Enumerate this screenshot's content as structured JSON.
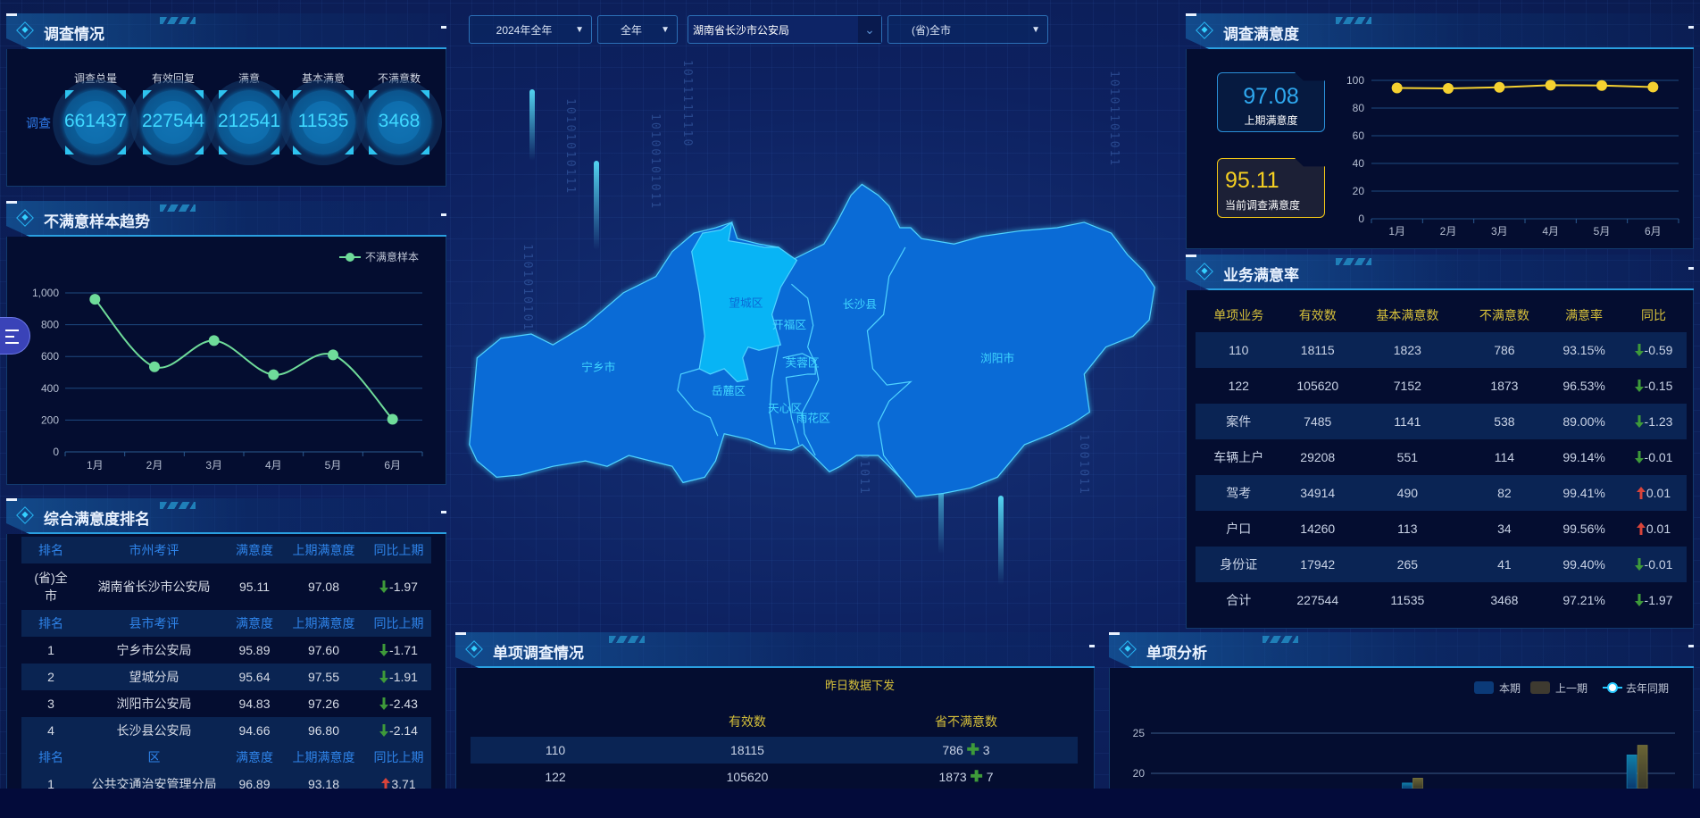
{
  "filters": {
    "year": "2024年全年",
    "period": "全年",
    "org": "湖南省长沙市公安局",
    "area": "(省)全市"
  },
  "survey": {
    "title": "调查情况",
    "row_label": "调查",
    "items": [
      {
        "label": "调查总量",
        "value": "661437"
      },
      {
        "label": "有效回复",
        "value": "227544"
      },
      {
        "label": "满意",
        "value": "212541"
      },
      {
        "label": "基本满意",
        "value": "11535"
      },
      {
        "label": "不满意数",
        "value": "3468"
      }
    ]
  },
  "trend": {
    "title": "不满意样本趋势"
  },
  "ranking": {
    "title": "综合满意度排名",
    "sections": [
      {
        "headers": [
          "排名",
          "市州考评",
          "满意度",
          "上期满意度",
          "同比上期"
        ],
        "rows": [
          {
            "rank": "(省)全市",
            "name": "湖南省长沙市公安局",
            "score": "95.11",
            "prev": "97.08",
            "dir": "down",
            "change": "-1.97"
          }
        ]
      },
      {
        "headers": [
          "排名",
          "县市考评",
          "满意度",
          "上期满意度",
          "同比上期"
        ],
        "rows": [
          {
            "rank": "1",
            "name": "宁乡市公安局",
            "score": "95.89",
            "prev": "97.60",
            "dir": "down",
            "change": "-1.71"
          },
          {
            "rank": "2",
            "name": "望城分局",
            "score": "95.64",
            "prev": "97.55",
            "dir": "down",
            "change": "-1.91"
          },
          {
            "rank": "3",
            "name": "浏阳市公安局",
            "score": "94.83",
            "prev": "97.26",
            "dir": "down",
            "change": "-2.43"
          },
          {
            "rank": "4",
            "name": "长沙县公安局",
            "score": "94.66",
            "prev": "96.80",
            "dir": "down",
            "change": "-2.14"
          }
        ]
      },
      {
        "headers": [
          "排名",
          "区",
          "满意度",
          "上期满意度",
          "同比上期"
        ],
        "rows": [
          {
            "rank": "1",
            "name": "公共交通治安管理分局",
            "score": "96.89",
            "prev": "93.18",
            "dir": "up",
            "change": "3.71"
          }
        ]
      }
    ]
  },
  "satisfaction": {
    "title": "调查满意度",
    "prev": {
      "value": "97.08",
      "label": "上期满意度"
    },
    "current": {
      "value": "95.11",
      "label": "当前调查满意度"
    }
  },
  "business": {
    "title": "业务满意率",
    "headers": [
      "单项业务",
      "有效数",
      "基本满意数",
      "不满意数",
      "满意率",
      "同比"
    ],
    "rows": [
      {
        "item": "110",
        "valid": "18115",
        "basic": "1823",
        "unsat": "786",
        "rate": "93.15%",
        "dir": "down",
        "change": "-0.59"
      },
      {
        "item": "122",
        "valid": "105620",
        "basic": "7152",
        "unsat": "1873",
        "rate": "96.53%",
        "dir": "down",
        "change": "-0.15"
      },
      {
        "item": "案件",
        "valid": "7485",
        "basic": "1141",
        "unsat": "538",
        "rate": "89.00%",
        "dir": "down",
        "change": "-1.23"
      },
      {
        "item": "车辆上户",
        "valid": "29208",
        "basic": "551",
        "unsat": "114",
        "rate": "99.14%",
        "dir": "down",
        "change": "-0.01"
      },
      {
        "item": "驾考",
        "valid": "34914",
        "basic": "490",
        "unsat": "82",
        "rate": "99.41%",
        "dir": "up",
        "change": "0.01"
      },
      {
        "item": "户口",
        "valid": "14260",
        "basic": "113",
        "unsat": "34",
        "rate": "99.56%",
        "dir": "up",
        "change": "0.01"
      },
      {
        "item": "身份证",
        "valid": "17942",
        "basic": "265",
        "unsat": "41",
        "rate": "99.40%",
        "dir": "down",
        "change": "-0.01"
      },
      {
        "item": "合计",
        "valid": "227544",
        "basic": "11535",
        "unsat": "3468",
        "rate": "97.21%",
        "dir": "down",
        "change": "-1.97"
      }
    ]
  },
  "single_survey": {
    "title": "单项调查情况",
    "caption": "昨日数据下发",
    "headers": [
      "",
      "有效数",
      "省不满意数"
    ],
    "rows": [
      {
        "item": "110",
        "valid": "18115",
        "unsat": "786",
        "delta": "3"
      },
      {
        "item": "122",
        "valid": "105620",
        "unsat": "1873",
        "delta": "7"
      }
    ]
  },
  "single_analysis": {
    "title": "单项分析"
  },
  "map": {
    "regions": [
      {
        "name": "宁乡市",
        "highlight": false
      },
      {
        "name": "望城区",
        "highlight": true
      },
      {
        "name": "开福区",
        "highlight": false
      },
      {
        "name": "长沙县",
        "highlight": false
      },
      {
        "name": "芙蓉区",
        "highlight": false
      },
      {
        "name": "岳麓区",
        "highlight": false
      },
      {
        "name": "天心区",
        "highlight": false
      },
      {
        "name": "雨花区",
        "highlight": false
      },
      {
        "name": "浏阳市",
        "highlight": false
      }
    ]
  },
  "decor": {
    "binary": [
      "10101010111",
      "10100101011",
      "1011111110",
      "1101010101",
      "10101101011",
      "0101011",
      "1001011"
    ]
  },
  "colors": {
    "accent": "#2a9fe0",
    "map_fill": "#0a6bd6",
    "map_highlight": "#08b4f5",
    "down": "#3e9a3a",
    "up": "#d9443a",
    "trend_line": "#6fdc9a",
    "sat_line": "#f5d130",
    "header_yellow": "#d6c03a"
  },
  "chart_data": [
    {
      "type": "line",
      "id": "trend",
      "categories": [
        "1月",
        "2月",
        "3月",
        "4月",
        "5月",
        "6月"
      ],
      "series": [
        {
          "name": "不满意样本",
          "values": [
            960,
            535,
            700,
            485,
            610,
            205
          ]
        }
      ],
      "ylim": [
        0,
        1000
      ],
      "yticks": [
        "0",
        "200",
        "400",
        "600",
        "800",
        "1,000"
      ],
      "smooth": true,
      "grid": true,
      "legend": "top-right"
    },
    {
      "type": "line",
      "id": "satisfaction",
      "categories": [
        "1月",
        "2月",
        "3月",
        "4月",
        "5月",
        "6月"
      ],
      "series": [
        {
          "values": [
            94.5,
            94.2,
            95.0,
            96.5,
            96.3,
            95.2
          ]
        }
      ],
      "ylim": [
        0,
        100
      ],
      "yticks": [
        "0",
        "20",
        "40",
        "60",
        "80",
        "100"
      ],
      "grid": true
    },
    {
      "type": "bar",
      "id": "single_analysis",
      "series": [
        {
          "name": "本期",
          "values": [
            null,
            null,
            null,
            18.8,
            null,
            null,
            22.3
          ]
        },
        {
          "name": "上一期",
          "values": [
            null,
            null,
            null,
            19.4,
            null,
            null,
            23.5
          ]
        },
        {
          "name": "去年同期",
          "values": []
        }
      ],
      "yticks": [
        "20",
        "25"
      ],
      "grid": true,
      "legend": "top-right"
    }
  ]
}
